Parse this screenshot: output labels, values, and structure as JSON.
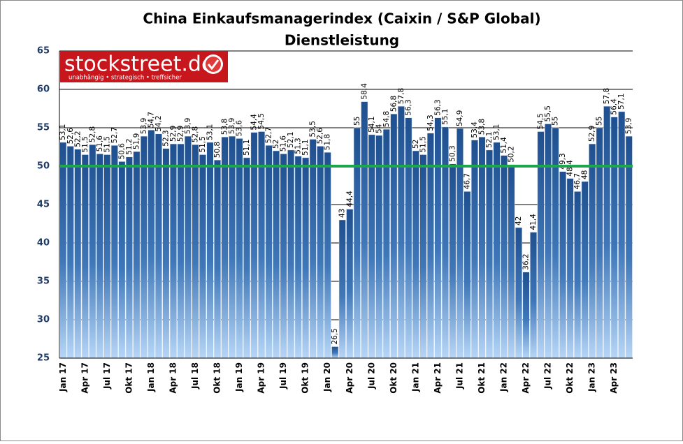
{
  "chart_data": {
    "type": "bar",
    "title": "China Einkaufsmanagerindex (Caixin / S&P Global)",
    "subtitle": "Dienstleistung",
    "logo": {
      "name": "stockstreet.de",
      "tagline": "unabhängig • strategisch • treffsicher"
    },
    "categories": [
      "Jan 17",
      null,
      null,
      "Apr 17",
      null,
      null,
      "Jul 17",
      null,
      null,
      "Okt 17",
      null,
      null,
      "Jan 18",
      null,
      null,
      "Apr 18",
      null,
      null,
      "Jul 18",
      null,
      null,
      "Okt 18",
      null,
      null,
      "Jan 19",
      null,
      null,
      "Apr 19",
      null,
      null,
      "Jul 19",
      null,
      null,
      "Okt 19",
      null,
      null,
      "Jan 20",
      null,
      null,
      "Apr 20",
      null,
      null,
      "Jul 20",
      null,
      null,
      "Okt 20",
      null,
      null,
      "Jan 21",
      null,
      null,
      "Apr 21",
      null,
      null,
      "Jul 21",
      null,
      null,
      "Okt 21",
      null,
      null,
      "Jan 22",
      null,
      null,
      "Apr 22",
      null,
      null,
      "Jul 22",
      null,
      null,
      "Okt 22",
      null,
      null,
      "Jan 23",
      null,
      null,
      "Apr 23",
      null,
      null
    ],
    "values": [
      53.1,
      52.6,
      52.2,
      51.5,
      52.8,
      51.6,
      51.5,
      52.7,
      50.6,
      51.2,
      51.9,
      53.9,
      54.7,
      54.2,
      52.3,
      52.9,
      52.9,
      53.9,
      52.8,
      51.5,
      53.1,
      50.8,
      53.8,
      53.9,
      53.6,
      51.1,
      54.4,
      54.5,
      52.7,
      52,
      51.6,
      52.1,
      51.3,
      51.1,
      53.5,
      52.6,
      51.8,
      26.5,
      43,
      44.4,
      55,
      58.4,
      54.1,
      54,
      54.8,
      56.8,
      57.8,
      56.3,
      52,
      51.5,
      54.3,
      56.3,
      55.1,
      50.3,
      54.9,
      46.7,
      53.4,
      53.8,
      52.1,
      53.1,
      51.4,
      50.2,
      42,
      36.2,
      41.4,
      54.5,
      55.5,
      55,
      49.3,
      48.4,
      46.7,
      48,
      52.9,
      55,
      57.8,
      56.4,
      57.1,
      53.9
    ],
    "value_labels": [
      "53,1",
      "52,6",
      "52,2",
      "51,5",
      "52,8",
      "51,6",
      "51,5",
      "52,7",
      "50,6",
      "51,2",
      "51,9",
      "53,9",
      "54,7",
      "54,2",
      "52,3",
      "52,9",
      "52,9",
      "53,9",
      "52,8",
      "51,5",
      "53,1",
      "50,8",
      "53,8",
      "53,9",
      "53,6",
      "51,1",
      "54,4",
      "54,5",
      "52,7",
      "52",
      "51,6",
      "52,1",
      "51,3",
      "51,1",
      "53,5",
      "52,6",
      "51,8",
      "26,5",
      "43",
      "44,4",
      "55",
      "58,4",
      "54,1",
      "54",
      "54,8",
      "56,8",
      "57,8",
      "56,3",
      "52",
      "51,5",
      "54,3",
      "56,3",
      "55,1",
      "50,3",
      "54,9",
      "46,7",
      "53,4",
      "53,8",
      "52,1",
      "53,1",
      "51,4",
      "50,2",
      "42",
      "36,2",
      "41,4",
      "54,5",
      "55,5",
      "55",
      "49,3",
      "48,4",
      "46,7",
      "48",
      "52,9",
      "55",
      "57,8",
      "56,4",
      "57,1",
      "53,9"
    ],
    "color": "#1f4f8f",
    "ylim": [
      25,
      65
    ],
    "yticks": [
      25,
      30,
      35,
      40,
      45,
      50,
      55,
      60,
      65
    ],
    "grid": true,
    "reference_line": {
      "value": 50,
      "color": "#1ea64c"
    }
  }
}
